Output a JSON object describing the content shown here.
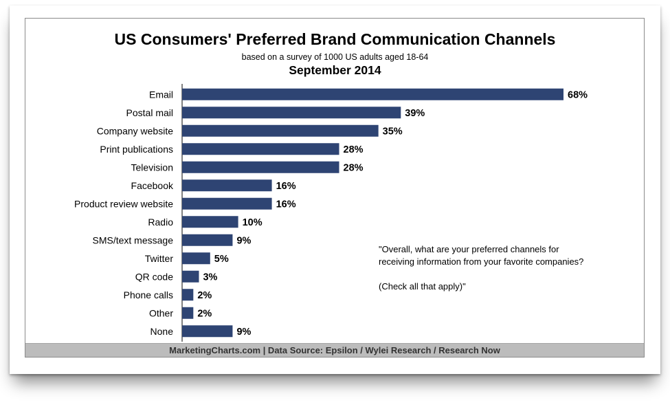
{
  "chart_data": {
    "type": "bar",
    "orientation": "horizontal",
    "title": "US Consumers' Preferred Brand Communication Channels",
    "subtitle": "based on a survey of 1000 US adults aged 18-64",
    "date_label": "September 2014",
    "categories": [
      "Email",
      "Postal mail",
      "Company website",
      "Print publications",
      "Television",
      "Facebook",
      "Product review website",
      "Radio",
      "SMS/text message",
      "Twitter",
      "QR code",
      "Phone calls",
      "Other",
      "None"
    ],
    "values": [
      68,
      39,
      35,
      28,
      28,
      16,
      16,
      10,
      9,
      5,
      3,
      2,
      2,
      9
    ],
    "value_labels": [
      "68%",
      "39%",
      "35%",
      "28%",
      "28%",
      "16%",
      "16%",
      "10%",
      "9%",
      "5%",
      "3%",
      "2%",
      "2%",
      "9%"
    ],
    "unit": "%",
    "xlim": [
      0,
      68
    ],
    "grid": false,
    "bar_color": "#2e4473",
    "annotation": {
      "lines": [
        "\"Overall, what are your preferred channels for",
        "receiving information from your favorite companies?"
      ],
      "sub": "(Check all that apply)\""
    },
    "footer": "MarketingCharts.com | Data Source: Epsilon / Wylei Research / Research Now"
  }
}
